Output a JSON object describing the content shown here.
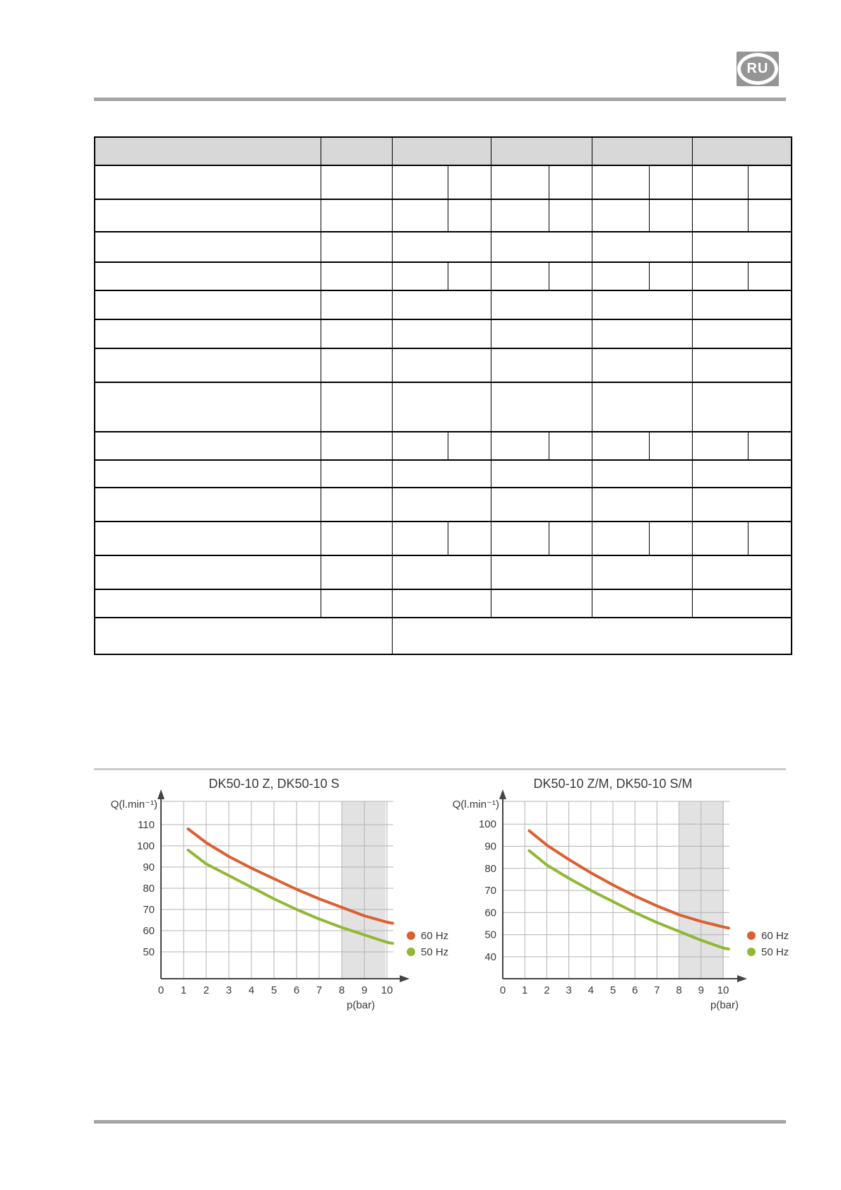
{
  "logo": {
    "text": "RU"
  },
  "colors": {
    "curve_60hz": "#db5f30",
    "curve_50hz": "#92b735",
    "shaded_band": "#e2e2e2",
    "grid_line": "#b3b3b3",
    "axis": "#444444",
    "table_header_fill": "#d8d8d8",
    "rule_gray": "#a4a4a4",
    "logo_gray": "#959595"
  },
  "table": {
    "note_visible_text": "",
    "header_cells": [
      "",
      "",
      "",
      "",
      "",
      ""
    ],
    "body_cells_empty": true
  },
  "chart_data": [
    {
      "type": "line",
      "title": "DK50-10 Z, DK50-10 S",
      "xlabel": "p(bar)",
      "ylabel": "Q(l.min⁻¹)",
      "x_ticks": [
        0,
        1,
        2,
        3,
        4,
        5,
        6,
        7,
        8,
        9,
        10
      ],
      "y_ticks": [
        110,
        100,
        90,
        80,
        70,
        60,
        50
      ],
      "xlim": [
        0,
        10.4
      ],
      "ylim": [
        37,
        121
      ],
      "grid": true,
      "legend_position": "right",
      "shaded_x_region": [
        8,
        10
      ],
      "series": [
        {
          "name": "60 Hz",
          "color": "#db5f30",
          "points": [
            [
              1.2,
              108
            ],
            [
              2,
              101.5
            ],
            [
              3,
              95
            ],
            [
              4,
              89.5
            ],
            [
              5,
              84.5
            ],
            [
              6,
              79.5
            ],
            [
              7,
              75
            ],
            [
              8,
              71
            ],
            [
              9,
              67
            ],
            [
              10,
              64
            ],
            [
              10.25,
              63.5
            ]
          ]
        },
        {
          "name": "50 Hz",
          "color": "#92b735",
          "points": [
            [
              1.2,
              98
            ],
            [
              2,
              91.5
            ],
            [
              3,
              86
            ],
            [
              4,
              80.5
            ],
            [
              5,
              75
            ],
            [
              6,
              70
            ],
            [
              7,
              65.5
            ],
            [
              8,
              61.5
            ],
            [
              9,
              58
            ],
            [
              10,
              54.5
            ],
            [
              10.25,
              54
            ]
          ]
        }
      ]
    },
    {
      "type": "line",
      "title": "DK50-10 Z/M, DK50-10 S/M",
      "xlabel": "p(bar)",
      "ylabel": "Q(l.min⁻¹)",
      "x_ticks": [
        0,
        1,
        2,
        3,
        4,
        5,
        6,
        7,
        8,
        9,
        10
      ],
      "y_ticks": [
        100,
        90,
        80,
        70,
        60,
        50,
        40
      ],
      "xlim": [
        0,
        10.4
      ],
      "ylim": [
        30,
        110
      ],
      "grid": true,
      "legend_position": "right",
      "shaded_x_region": [
        8,
        10
      ],
      "series": [
        {
          "name": "60 Hz",
          "color": "#db5f30",
          "points": [
            [
              1.2,
              97
            ],
            [
              2,
              90.5
            ],
            [
              3,
              84
            ],
            [
              4,
              78
            ],
            [
              5,
              72.5
            ],
            [
              6,
              67.5
            ],
            [
              7,
              63
            ],
            [
              8,
              59
            ],
            [
              9,
              56
            ],
            [
              10,
              53.5
            ],
            [
              10.25,
              53
            ]
          ]
        },
        {
          "name": "50 Hz",
          "color": "#92b735",
          "points": [
            [
              1.2,
              88
            ],
            [
              2,
              81.5
            ],
            [
              3,
              75.5
            ],
            [
              4,
              70
            ],
            [
              5,
              65
            ],
            [
              6,
              60
            ],
            [
              7,
              55.5
            ],
            [
              8,
              51.5
            ],
            [
              9,
              47.5
            ],
            [
              10,
              44
            ],
            [
              10.25,
              43.5
            ]
          ]
        }
      ]
    }
  ]
}
